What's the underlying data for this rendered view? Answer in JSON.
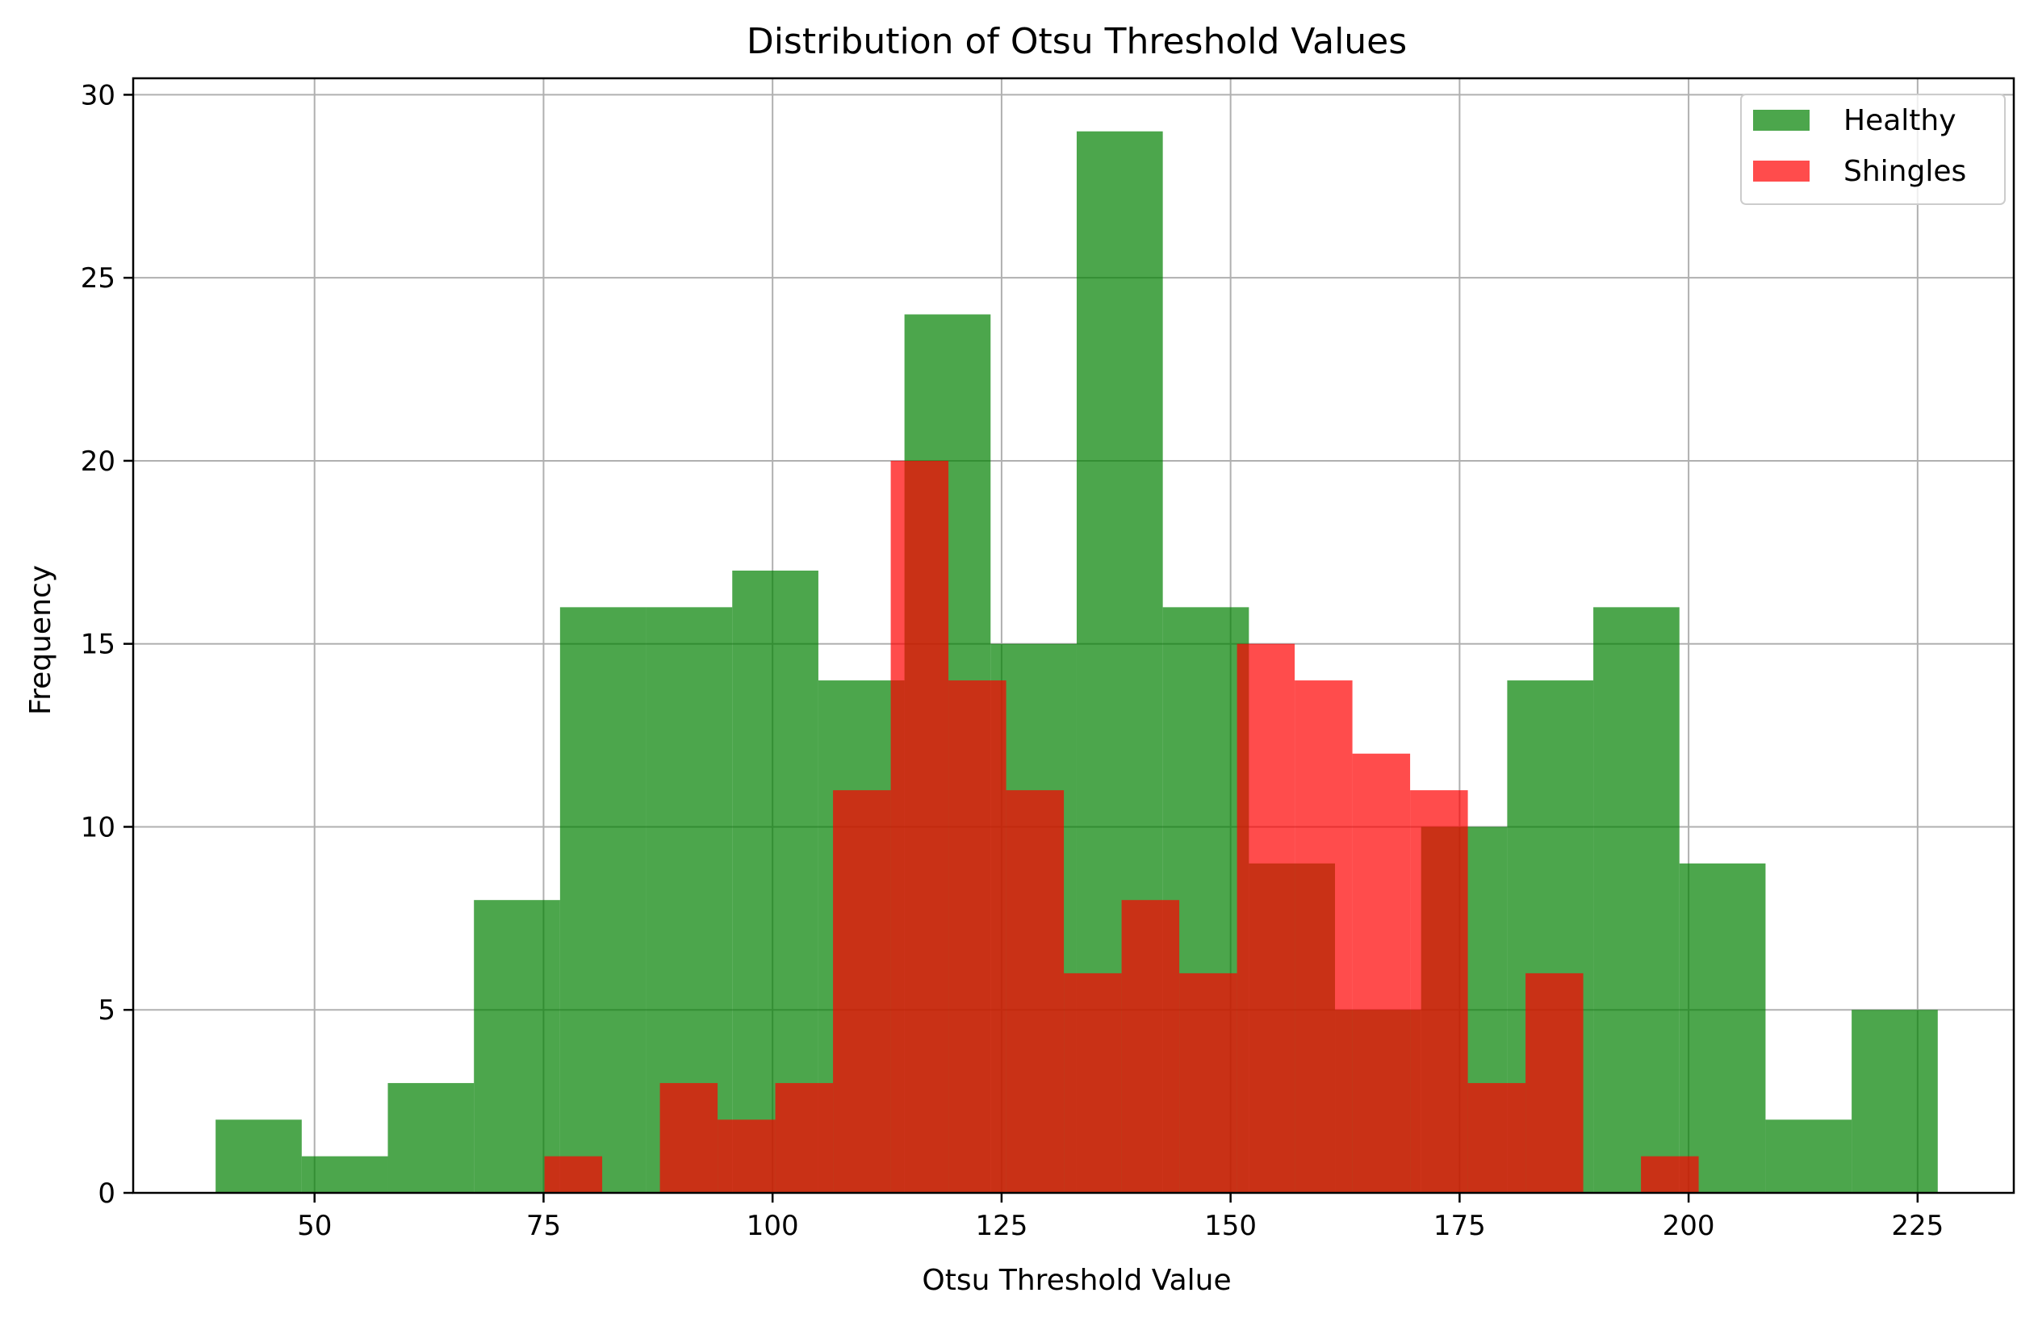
{
  "chart_data": {
    "type": "histogram",
    "title": "Distribution of Otsu Threshold Values",
    "xlabel": "Otsu Threshold Value",
    "ylabel": "Frequency",
    "xlim": [
      30.2,
      235.5
    ],
    "ylim": [
      0,
      30.45
    ],
    "xticks": [
      50,
      75,
      100,
      125,
      150,
      175,
      200,
      225
    ],
    "yticks": [
      0,
      5,
      10,
      15,
      20,
      25,
      30
    ],
    "grid": true,
    "legend_position": "top-right",
    "series": [
      {
        "name": "Healthy",
        "color": "#008000",
        "alpha": 0.7,
        "bin_edges": [
          39.2,
          48.6,
          58.0,
          67.4,
          76.8,
          86.2,
          95.6,
          105.0,
          114.4,
          123.8,
          133.2,
          142.6,
          152.0,
          161.4,
          170.8,
          180.2,
          189.6,
          199.0,
          208.4,
          217.8,
          227.2
        ],
        "counts": [
          2,
          1,
          3,
          8,
          16,
          16,
          17,
          14,
          24,
          15,
          29,
          16,
          9,
          5,
          10,
          14,
          16,
          9,
          2,
          5
        ]
      },
      {
        "name": "Shingles",
        "color": "#ff0000",
        "alpha": 0.7,
        "bin_edges": [
          75.1,
          81.4,
          87.7,
          94.0,
          100.3,
          106.6,
          112.9,
          119.2,
          125.5,
          131.8,
          138.1,
          144.4,
          150.7,
          157.0,
          163.3,
          169.6,
          175.9,
          182.2,
          188.5,
          194.8,
          201.1
        ],
        "counts": [
          1,
          0,
          3,
          2,
          3,
          11,
          20,
          14,
          11,
          6,
          8,
          6,
          15,
          14,
          12,
          11,
          3,
          6,
          0,
          1
        ]
      }
    ]
  }
}
